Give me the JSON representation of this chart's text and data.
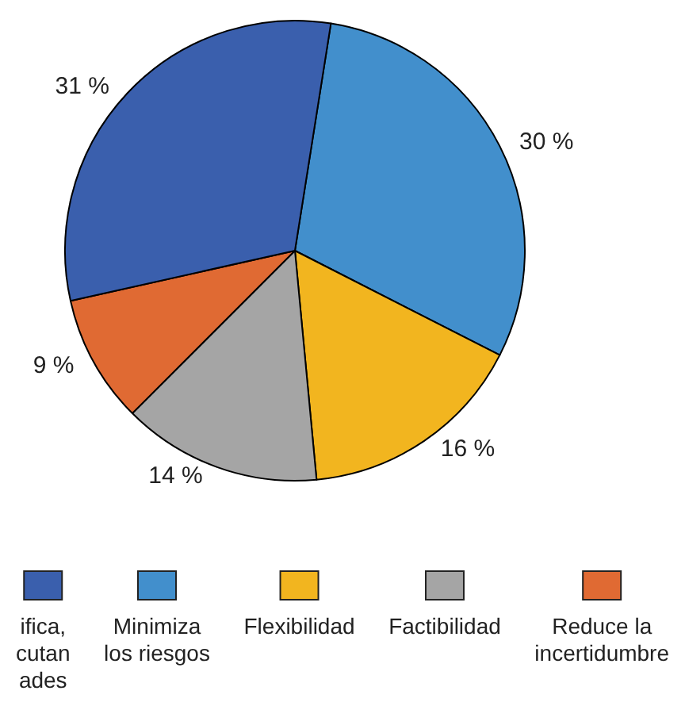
{
  "chart_data": {
    "type": "pie",
    "categories": [
      "Minimiza\nlos riesgos",
      "Flexibilidad",
      "Factibilidad",
      "Reduce la\nincertidumbre",
      "ifica,\ncutan\nades"
    ],
    "values": [
      30,
      16,
      14,
      9,
      31
    ],
    "colors": [
      "#428fcc",
      "#f2b51f",
      "#a5a5a5",
      "#e06a33",
      "#3a5fad"
    ],
    "value_labels": [
      "30 %",
      "16 %",
      "14 %",
      "9 %",
      "31 %"
    ],
    "legend": "bottom"
  }
}
